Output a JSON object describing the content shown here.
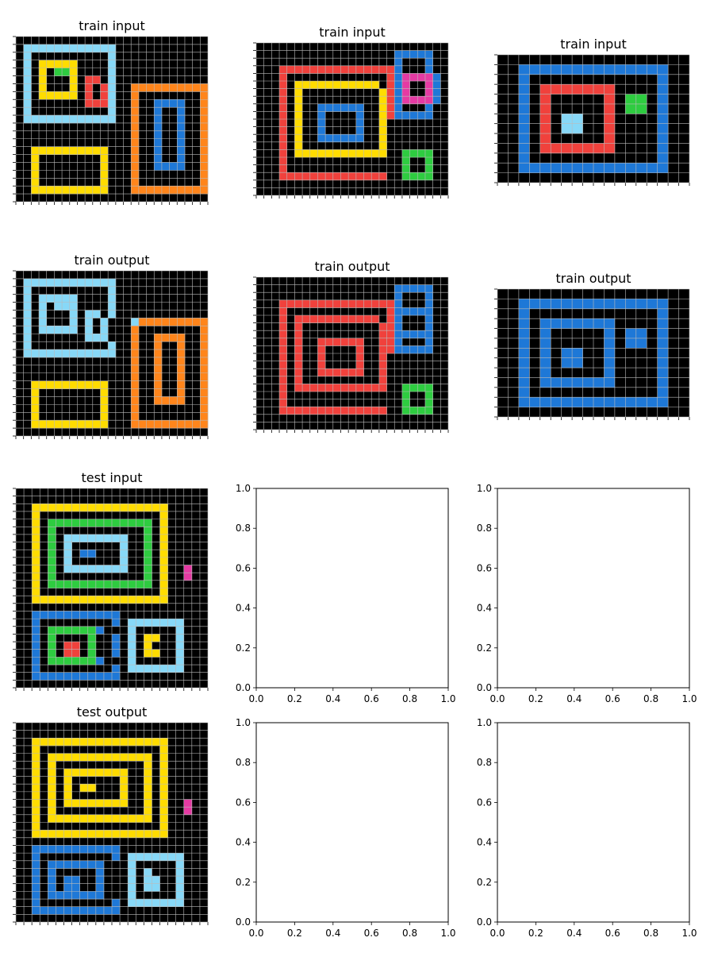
{
  "colors": {
    "0": "#000000",
    "1": "#1E78D7",
    "2": "#F0413C",
    "3": "#2ECC40",
    "4": "#FFDC00",
    "6": "#E53AA3",
    "7": "#FF851B",
    "8": "#87D8F7"
  },
  "panels": [
    {
      "title": "train input",
      "grid": [
        "0000000000000000000000000",
        "0888888888888000000000000",
        "0800000000008000000000000",
        "0804444400008000000000000",
        "0804033400008000000000000",
        "0804000402208000000000000",
        "0804000402028007777777777",
        "0804444402028007000000007",
        "0800000002228007001111007",
        "0800000000008007001001007",
        "0888888888888007001001007",
        "0000000000000007001001007",
        "0000000000000007001001007",
        "0000000000000007001001007",
        "0044444444440007001001007",
        "0040000000040007001001007",
        "0040000000040007001111007",
        "0040000000040007000000007",
        "0040000000040007000000007",
        "0044444444440007777777777",
        "0000000000000000000000000"
      ]
    },
    {
      "title": "train input",
      "grid": [
        "0000000000000000000000000",
        "0000000000000000001111100",
        "0000000000000000001000100",
        "0002222222222222221000100",
        "0002000000000000021666610",
        "0002044444444444021600610",
        "0002040000000000421600610",
        "0002040000000000421666610",
        "0002040011111100421000100",
        "0002040010000100421111100",
        "0002040010000100400000000",
        "0002040010000100400000000",
        "0002040011111100400000000",
        "0002040000000000400000000",
        "0002044444444444400333300",
        "0002000000000000000300300",
        "0002000000000000000300300",
        "0002222222222222200333300",
        "0000000000000000000000000",
        "0000000000000000000000000"
      ]
    },
    {
      "title": "train input",
      "grid": [
        "000000000000000000",
        "001111111111111100",
        "001000000000000100",
        "001022222220000100",
        "001020000020330100",
        "001020000020330100",
        "001020880020000100",
        "001020880020000100",
        "001020000020000100",
        "001022222220000100",
        "001000000000000100",
        "001111111111111100",
        "000000000000000000"
      ]
    },
    {
      "title": "train output",
      "grid": [
        "0000000000000000000000000",
        "0888888888888000000000000",
        "0800000000008000000000000",
        "0808888800008000000000000",
        "0808088800008000000000000",
        "0808000808808000000000000",
        "0808000808080008777777777",
        "0808888808080007000000007",
        "0800000008880007007777007",
        "0800000000008007007007007",
        "0888888888888007007007007",
        "0000000000000007007007007",
        "0000000000000007007007007",
        "0000000000000007007007007",
        "0044444444440007007007007",
        "0040000000040007007007007",
        "0040000000040007007777007",
        "0040000000040007000000007",
        "0040000000040007000000007",
        "0044444444440007777777777",
        "0000000000000000000000000"
      ]
    },
    {
      "title": "train output",
      "grid": [
        "0000000000000000000000000",
        "0000000000000000001111100",
        "0000000000000000001000100",
        "0002222222222222221000100",
        "0002000000000000021111100",
        "0002022222222222021000100",
        "0002020000000000221000100",
        "0002020000000000221111100",
        "0002020022222200221000100",
        "0002020020000200221111100",
        "0002020020000200200000000",
        "0002020020000200200000000",
        "0002020022222200200000000",
        "0002020000000000200000000",
        "0002022222222222200333300",
        "0002000000000000000300300",
        "0002000000000000000300300",
        "0002222222222222200333300",
        "0000000000000000000000000",
        "0000000000000000000000000"
      ]
    },
    {
      "title": "train output",
      "grid": [
        "000000000000000000",
        "001111111111111100",
        "001000000000000100",
        "001011111110000100",
        "001010000010110100",
        "001010000010110100",
        "001010110010000100",
        "001010110010000100",
        "001010000010000100",
        "001011111110000100",
        "001000000000000100",
        "001111111111111100",
        "000000000000000000"
      ]
    },
    {
      "title": "test input",
      "grid": [
        "000000000000000000000000",
        "000000000000000000000000",
        "004444444444444444400000",
        "004000000000000000400000",
        "004033333333333330400000",
        "004030000000000030400000",
        "004030888888880030400000",
        "004030800000080030400000",
        "004030801100080030400000",
        "004030800000080030400000",
        "004030888888880030400600",
        "004030000000000030400600",
        "004033333333333330400000",
        "004000000000000000400000",
        "004444444444444444400000",
        "000000000000000000000000",
        "001111111111100000000000",
        "001000000000108888888000",
        "001033333310008000008000",
        "001030000300108044008000",
        "001030220300108040008000",
        "001030220300108044008000",
        "001033333310008000008000",
        "001000000000108888888000",
        "001111111111100000000000",
        "000000000000000000000000"
      ]
    },
    {
      "title": "test output",
      "grid": [
        "000000000000000000000000",
        "000000000000000000000000",
        "004444444444444444400000",
        "004000000000000000400000",
        "004044444444444440400000",
        "004040000000000040400000",
        "004040444444440040400000",
        "004040400000040040400000",
        "004040404400040040400000",
        "004040400000040040400000",
        "004040444444440040400600",
        "004040000000000040400600",
        "004044444444444440400000",
        "004000000000000000400000",
        "004444444444444444400000",
        "000000000000000000000000",
        "001111111111100000000000",
        "001000000000108888888000",
        "001011111110008000008000",
        "001010000010008080008000",
        "001010110010008088008000",
        "001010110010008088008000",
        "001011111110008000008000",
        "001000000000108888888000",
        "001111111111100000000000",
        "000000000000000000000000"
      ]
    }
  ],
  "empty_axes": {
    "tick_labels": [
      "0.0",
      "0.2",
      "0.4",
      "0.6",
      "0.8",
      "1.0"
    ]
  }
}
